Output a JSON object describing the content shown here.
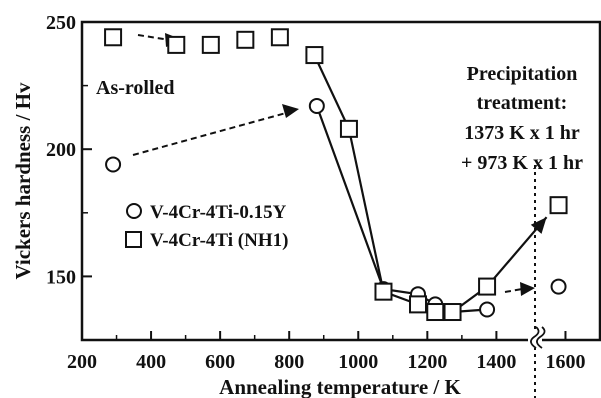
{
  "chart_data": {
    "type": "line",
    "xlabel": "Annealing temperature / K",
    "ylabel": "Vickers hardness / Hv",
    "xlim": [
      200,
      1700
    ],
    "ylim": [
      125,
      250
    ],
    "x_ticks": [
      "200",
      "400",
      "600",
      "800",
      "1000",
      "1200",
      "1400",
      "1600"
    ],
    "y_ticks": [
      "150",
      "200",
      "250"
    ],
    "axis_break": true,
    "grid": false,
    "legend_position": "left-middle",
    "series": [
      {
        "name": "V-4Cr-4Ti-0.15Y",
        "marker": "circle",
        "points": [
          {
            "x": 290,
            "y": 194
          },
          {
            "x": 880,
            "y": 217
          },
          {
            "x": 1073,
            "y": 145
          },
          {
            "x": 1173,
            "y": 143
          },
          {
            "x": 1223,
            "y": 139
          },
          {
            "x": 1273,
            "y": 136
          },
          {
            "x": 1373,
            "y": 137
          },
          {
            "x": 1580,
            "y": 146
          }
        ]
      },
      {
        "name": "V-4Cr-4Ti (NH1)",
        "marker": "square",
        "points": [
          {
            "x": 290,
            "y": 244
          },
          {
            "x": 473,
            "y": 241
          },
          {
            "x": 573,
            "y": 241
          },
          {
            "x": 673,
            "y": 243
          },
          {
            "x": 773,
            "y": 244
          },
          {
            "x": 873,
            "y": 237
          },
          {
            "x": 973,
            "y": 208
          },
          {
            "x": 1073,
            "y": 144
          },
          {
            "x": 1173,
            "y": 139
          },
          {
            "x": 1223,
            "y": 136
          },
          {
            "x": 1273,
            "y": 136
          },
          {
            "x": 1373,
            "y": 146
          },
          {
            "x": 1580,
            "y": 178
          }
        ]
      }
    ],
    "annotations": {
      "as_rolled": "As-rolled",
      "precipitation": [
        "Precipitation",
        "treatment:",
        "1373 K x 1 hr",
        "+ 973 K x 1 hr"
      ]
    }
  }
}
